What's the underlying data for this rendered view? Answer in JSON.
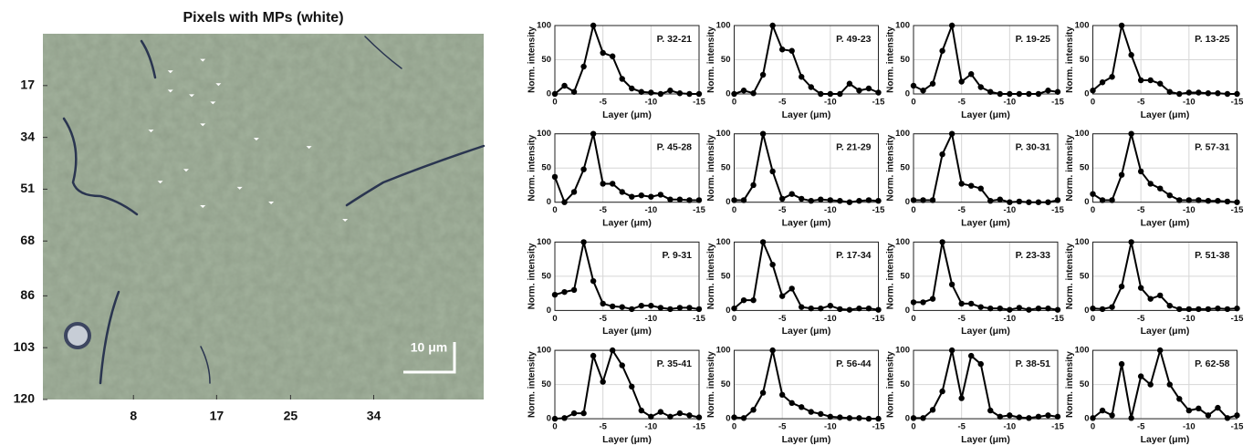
{
  "chart_data": [
    {
      "type": "scatter",
      "title": "Pixels with MPs (white)",
      "annotation": "10 μm",
      "color": "#ffffff",
      "x": [
        12.0,
        15.5,
        12.0,
        14.3,
        17.2,
        16.6,
        9.9,
        15.5,
        21.3,
        27.0,
        13.7,
        10.9,
        19.5,
        15.5,
        22.9,
        30.9
      ],
      "values": [
        12.5,
        8.7,
        18.8,
        20.3,
        16.7,
        22.7,
        31.9,
        29.9,
        34.6,
        37.3,
        44.8,
        48.7,
        50.7,
        56.7,
        55.5,
        61.2
      ],
      "xlim": [
        -1.8,
        45.9
      ],
      "ylim": [
        0,
        120
      ],
      "xticks": [
        8,
        17,
        25,
        34
      ],
      "yticks": [
        17,
        34,
        51,
        68,
        86,
        103,
        120
      ]
    },
    {
      "type": "line",
      "annotation": "P. 32-21",
      "xlabel": "Layer (μm)",
      "ylabel": "Norm. intensity",
      "color": "#000000",
      "grid": true,
      "x": [
        0,
        -1,
        -2,
        -3,
        -4,
        -5,
        -6,
        -7,
        -8,
        -9,
        -10,
        -11,
        -12,
        -13,
        -14,
        -15
      ],
      "values": [
        0,
        12,
        3,
        40,
        100,
        60,
        55,
        22,
        8,
        3,
        2,
        0,
        5,
        1,
        0,
        0
      ],
      "xlim": [
        0,
        -15
      ],
      "ylim": [
        0,
        100
      ],
      "xticks": [
        0,
        -5,
        -10,
        -15
      ],
      "yticks": [
        0,
        50,
        100
      ]
    },
    {
      "type": "line",
      "annotation": "P. 49-23",
      "xlabel": "Layer (μm)",
      "ylabel": "Norm. intensity",
      "color": "#000000",
      "grid": true,
      "x": [
        0,
        -1,
        -2,
        -3,
        -4,
        -5,
        -6,
        -7,
        -8,
        -9,
        -10,
        -11,
        -12,
        -13,
        -14,
        -15
      ],
      "values": [
        0,
        5,
        1,
        28,
        100,
        65,
        63,
        25,
        10,
        0,
        0,
        0,
        15,
        5,
        8,
        2
      ],
      "xlim": [
        0,
        -15
      ],
      "ylim": [
        0,
        100
      ],
      "xticks": [
        0,
        -5,
        -10,
        -15
      ],
      "yticks": [
        0,
        50,
        100
      ]
    },
    {
      "type": "line",
      "annotation": "P. 19-25",
      "xlabel": "Layer (μm)",
      "ylabel": "Norm. intensity",
      "color": "#000000",
      "grid": true,
      "x": [
        0,
        -1,
        -2,
        -3,
        -4,
        -5,
        -6,
        -7,
        -8,
        -9,
        -10,
        -11,
        -12,
        -13,
        -14,
        -15
      ],
      "values": [
        12,
        5,
        15,
        63,
        100,
        18,
        29,
        10,
        3,
        0,
        0,
        0,
        0,
        0,
        5,
        3
      ],
      "xlim": [
        0,
        -15
      ],
      "ylim": [
        0,
        100
      ],
      "xticks": [
        0,
        -5,
        -10,
        -15
      ],
      "yticks": [
        0,
        50,
        100
      ]
    },
    {
      "type": "line",
      "annotation": "P. 13-25",
      "xlabel": "Layer (μm)",
      "ylabel": "Norm. intensity",
      "color": "#000000",
      "grid": true,
      "x": [
        0,
        -1,
        -2,
        -3,
        -4,
        -5,
        -6,
        -7,
        -8,
        -9,
        -10,
        -11,
        -12,
        -13,
        -14,
        -15
      ],
      "values": [
        5,
        17,
        25,
        100,
        57,
        20,
        20,
        15,
        3,
        0,
        2,
        2,
        1,
        1,
        0,
        0
      ],
      "xlim": [
        0,
        -15
      ],
      "ylim": [
        0,
        100
      ],
      "xticks": [
        0,
        -5,
        -10,
        -15
      ],
      "yticks": [
        0,
        50,
        100
      ]
    },
    {
      "type": "line",
      "annotation": "P. 45-28",
      "xlabel": "Layer (μm)",
      "ylabel": "Norm. intensity",
      "color": "#000000",
      "grid": true,
      "x": [
        0,
        -1,
        -2,
        -3,
        -4,
        -5,
        -6,
        -7,
        -8,
        -9,
        -10,
        -11,
        -12,
        -13,
        -14,
        -15
      ],
      "values": [
        37,
        0,
        15,
        48,
        100,
        27,
        27,
        15,
        8,
        10,
        8,
        11,
        4,
        4,
        3,
        3
      ],
      "xlim": [
        0,
        -15
      ],
      "ylim": [
        0,
        100
      ],
      "xticks": [
        0,
        -5,
        -10,
        -15
      ],
      "yticks": [
        0,
        50,
        100
      ]
    },
    {
      "type": "line",
      "annotation": "P. 21-29",
      "xlabel": "Layer (μm)",
      "ylabel": "Norm. intensity",
      "color": "#000000",
      "grid": true,
      "x": [
        0,
        -1,
        -2,
        -3,
        -4,
        -5,
        -6,
        -7,
        -8,
        -9,
        -10,
        -11,
        -12,
        -13,
        -14,
        -15
      ],
      "values": [
        3,
        3,
        25,
        100,
        45,
        5,
        12,
        5,
        2,
        4,
        3,
        2,
        0,
        2,
        3,
        2
      ],
      "xlim": [
        0,
        -15
      ],
      "ylim": [
        0,
        100
      ],
      "xticks": [
        0,
        -5,
        -10,
        -15
      ],
      "yticks": [
        0,
        50,
        100
      ]
    },
    {
      "type": "line",
      "annotation": "P. 30-31",
      "xlabel": "Layer (μm)",
      "ylabel": "Norm. intensity",
      "color": "#000000",
      "grid": true,
      "x": [
        0,
        -1,
        -2,
        -3,
        -4,
        -5,
        -6,
        -7,
        -8,
        -9,
        -10,
        -11,
        -12,
        -13,
        -14,
        -15
      ],
      "values": [
        3,
        3,
        3,
        70,
        100,
        27,
        24,
        20,
        2,
        4,
        0,
        1,
        0,
        0,
        0,
        3
      ],
      "xlim": [
        0,
        -15
      ],
      "ylim": [
        0,
        100
      ],
      "xticks": [
        0,
        -5,
        -10,
        -15
      ],
      "yticks": [
        0,
        50,
        100
      ]
    },
    {
      "type": "line",
      "annotation": "P. 57-31",
      "xlabel": "Layer (μm)",
      "ylabel": "Norm. intensity",
      "color": "#000000",
      "grid": true,
      "x": [
        0,
        -1,
        -2,
        -3,
        -4,
        -5,
        -6,
        -7,
        -8,
        -9,
        -10,
        -11,
        -12,
        -13,
        -14,
        -15
      ],
      "values": [
        12,
        3,
        3,
        40,
        100,
        45,
        27,
        20,
        10,
        3,
        3,
        3,
        2,
        2,
        1,
        0
      ],
      "xlim": [
        0,
        -15
      ],
      "ylim": [
        0,
        100
      ],
      "xticks": [
        0,
        -5,
        -10,
        -15
      ],
      "yticks": [
        0,
        50,
        100
      ]
    },
    {
      "type": "line",
      "annotation": "P. 9-31",
      "xlabel": "Layer (μm)",
      "ylabel": "Norm. intensity",
      "color": "#000000",
      "grid": true,
      "x": [
        0,
        -1,
        -2,
        -3,
        -4,
        -5,
        -6,
        -7,
        -8,
        -9,
        -10,
        -11,
        -12,
        -13,
        -14,
        -15
      ],
      "values": [
        23,
        27,
        30,
        100,
        43,
        10,
        6,
        5,
        2,
        7,
        7,
        4,
        2,
        4,
        4,
        2
      ],
      "xlim": [
        0,
        -15
      ],
      "ylim": [
        0,
        100
      ],
      "xticks": [
        0,
        -5,
        -10,
        -15
      ],
      "yticks": [
        0,
        50,
        100
      ]
    },
    {
      "type": "line",
      "annotation": "P. 17-34",
      "xlabel": "Layer (μm)",
      "ylabel": "Norm. intensity",
      "color": "#000000",
      "grid": true,
      "x": [
        0,
        -1,
        -2,
        -3,
        -4,
        -5,
        -6,
        -7,
        -8,
        -9,
        -10,
        -11,
        -12,
        -13,
        -14,
        -15
      ],
      "values": [
        3,
        15,
        15,
        100,
        67,
        21,
        32,
        5,
        3,
        3,
        7,
        2,
        1,
        3,
        3,
        1
      ],
      "xlim": [
        0,
        -15
      ],
      "ylim": [
        0,
        100
      ],
      "xticks": [
        0,
        -5,
        -10,
        -15
      ],
      "yticks": [
        0,
        50,
        100
      ]
    },
    {
      "type": "line",
      "annotation": "P. 23-33",
      "xlabel": "Layer (μm)",
      "ylabel": "Norm. intensity",
      "color": "#000000",
      "grid": true,
      "x": [
        0,
        -1,
        -2,
        -3,
        -4,
        -5,
        -6,
        -7,
        -8,
        -9,
        -10,
        -11,
        -12,
        -13,
        -14,
        -15
      ],
      "values": [
        12,
        12,
        17,
        100,
        38,
        10,
        10,
        5,
        3,
        3,
        1,
        4,
        1,
        3,
        3,
        1
      ],
      "xlim": [
        0,
        -15
      ],
      "ylim": [
        0,
        100
      ],
      "xticks": [
        0,
        -5,
        -10,
        -15
      ],
      "yticks": [
        0,
        50,
        100
      ]
    },
    {
      "type": "line",
      "annotation": "P. 51-38",
      "xlabel": "Layer (μm)",
      "ylabel": "Norm. intensity",
      "color": "#000000",
      "grid": true,
      "x": [
        0,
        -1,
        -2,
        -3,
        -4,
        -5,
        -6,
        -7,
        -8,
        -9,
        -10,
        -11,
        -12,
        -13,
        -14,
        -15
      ],
      "values": [
        3,
        2,
        5,
        35,
        100,
        33,
        17,
        22,
        7,
        2,
        2,
        2,
        2,
        3,
        2,
        3
      ],
      "xlim": [
        0,
        -15
      ],
      "ylim": [
        0,
        100
      ],
      "xticks": [
        0,
        -5,
        -10,
        -15
      ],
      "yticks": [
        0,
        50,
        100
      ]
    },
    {
      "type": "line",
      "annotation": "P. 35-41",
      "xlabel": "Layer (μm)",
      "ylabel": "Norm. intensity",
      "color": "#000000",
      "grid": true,
      "x": [
        0,
        -1,
        -2,
        -3,
        -4,
        -5,
        -6,
        -7,
        -8,
        -9,
        -10,
        -11,
        -12,
        -13,
        -14,
        -15
      ],
      "values": [
        0,
        1,
        8,
        8,
        92,
        54,
        100,
        78,
        47,
        12,
        3,
        10,
        3,
        8,
        5,
        2
      ],
      "xlim": [
        0,
        -15
      ],
      "ylim": [
        0,
        100
      ],
      "xticks": [
        0,
        -5,
        -10,
        -15
      ],
      "yticks": [
        0,
        50,
        100
      ]
    },
    {
      "type": "line",
      "annotation": "P. 56-44",
      "xlabel": "Layer (μm)",
      "ylabel": "Norm. intensity",
      "color": "#000000",
      "grid": true,
      "x": [
        0,
        -1,
        -2,
        -3,
        -4,
        -5,
        -6,
        -7,
        -8,
        -9,
        -10,
        -11,
        -12,
        -13,
        -14,
        -15
      ],
      "values": [
        2,
        1,
        13,
        38,
        100,
        35,
        23,
        17,
        10,
        7,
        3,
        2,
        1,
        1,
        0,
        0
      ],
      "xlim": [
        0,
        -15
      ],
      "ylim": [
        0,
        100
      ],
      "xticks": [
        0,
        -5,
        -10,
        -15
      ],
      "yticks": [
        0,
        50,
        100
      ]
    },
    {
      "type": "line",
      "annotation": "P. 38-51",
      "xlabel": "Layer (μm)",
      "ylabel": "Norm. intensity",
      "color": "#000000",
      "grid": true,
      "x": [
        0,
        -1,
        -2,
        -3,
        -4,
        -5,
        -6,
        -7,
        -8,
        -9,
        -10,
        -11,
        -12,
        -13,
        -14,
        -15
      ],
      "values": [
        1,
        1,
        13,
        40,
        100,
        30,
        92,
        80,
        12,
        3,
        5,
        2,
        1,
        3,
        5,
        3
      ],
      "xlim": [
        0,
        -15
      ],
      "ylim": [
        0,
        100
      ],
      "xticks": [
        0,
        -5,
        -10,
        -15
      ],
      "yticks": [
        0,
        50,
        100
      ]
    },
    {
      "type": "line",
      "annotation": "P. 62-58",
      "xlabel": "Layer (μm)",
      "ylabel": "Norm. intensity",
      "color": "#000000",
      "grid": true,
      "x": [
        0,
        -1,
        -2,
        -3,
        -4,
        -5,
        -6,
        -7,
        -8,
        -9,
        -10,
        -11,
        -12,
        -13,
        -14,
        -15
      ],
      "values": [
        1,
        12,
        5,
        80,
        1,
        62,
        50,
        100,
        50,
        29,
        12,
        15,
        5,
        16,
        1,
        5
      ],
      "xlim": [
        0,
        -15
      ],
      "ylim": [
        0,
        100
      ],
      "xticks": [
        0,
        -5,
        -10,
        -15
      ],
      "yticks": [
        0,
        50,
        100
      ]
    }
  ]
}
